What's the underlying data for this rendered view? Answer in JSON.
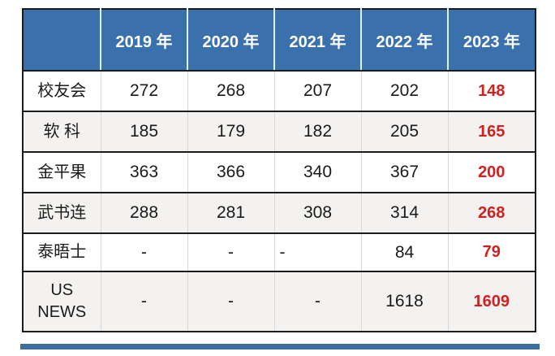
{
  "table": {
    "header": {
      "corner": "",
      "years": [
        "2019 年",
        "2020 年",
        "2021 年",
        "2022 年",
        "2023 年"
      ]
    },
    "rows": [
      {
        "label": "校友会",
        "values": [
          "272",
          "268",
          "207",
          "202",
          "148"
        ]
      },
      {
        "label": "软 科",
        "values": [
          "185",
          "179",
          "182",
          "205",
          "165"
        ]
      },
      {
        "label": "金平果",
        "values": [
          "363",
          "366",
          "340",
          "367",
          "200"
        ]
      },
      {
        "label": "武书连",
        "values": [
          "288",
          "281",
          "308",
          "314",
          "268"
        ]
      },
      {
        "label": "泰晤士",
        "values": [
          "-",
          "-",
          "-",
          "84",
          "79"
        ]
      },
      {
        "label": "US\nNEWS",
        "values": [
          "-",
          "-",
          "-",
          "1618",
          "1609"
        ]
      }
    ]
  },
  "colors": {
    "header_bg": "#3a70ac",
    "header_text": "#ffffff",
    "header_divider": "#dff2fb",
    "border_dark": "#1c1c1c",
    "body_divider": "#d8d8d8",
    "row_bg": "#ffffff",
    "row_alt_bg": "#f3f2f0",
    "text": "#1a1a1a",
    "highlight_red": "#d02121",
    "bottom_bar": "#3c6da1"
  }
}
